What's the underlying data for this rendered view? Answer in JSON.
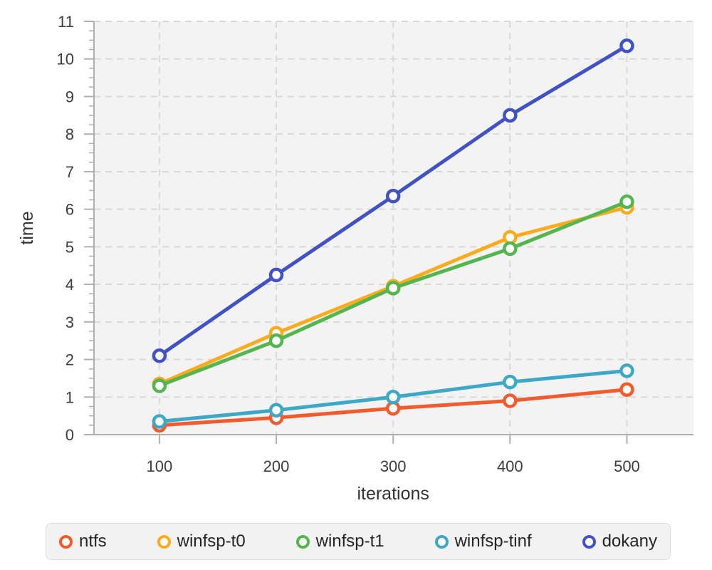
{
  "chart_data": {
    "type": "line",
    "title": "",
    "xlabel": "iterations",
    "ylabel": "time",
    "x": [
      100,
      200,
      300,
      400,
      500
    ],
    "x_ticks": [
      100,
      200,
      300,
      400,
      500
    ],
    "y_ticks": [
      0,
      1,
      2,
      3,
      4,
      5,
      6,
      7,
      8,
      9,
      10,
      11
    ],
    "ylim": [
      0,
      11
    ],
    "xlim": [
      44,
      557
    ],
    "grid": "dashed",
    "legend_position": "bottom",
    "marker": "open-circle",
    "series": [
      {
        "name": "ntfs",
        "color": "#f15b2e",
        "values": [
          0.25,
          0.45,
          0.7,
          0.9,
          1.2
        ]
      },
      {
        "name": "winfsp-t0",
        "color": "#fbab1e",
        "values": [
          1.35,
          2.7,
          3.95,
          5.25,
          6.05
        ]
      },
      {
        "name": "winfsp-t1",
        "color": "#55b54f",
        "values": [
          1.3,
          2.5,
          3.9,
          4.95,
          6.2
        ]
      },
      {
        "name": "winfsp-tinf",
        "color": "#3fa8c7",
        "values": [
          0.35,
          0.65,
          1.0,
          1.4,
          1.7
        ]
      },
      {
        "name": "dokany",
        "color": "#4252c5",
        "values": [
          2.1,
          4.25,
          6.35,
          8.5,
          10.35
        ]
      }
    ],
    "colors": {
      "plot_bg": "#f3f3f3",
      "grid": "#d9d9d9",
      "axis": "#b0b0b0",
      "tick_text": "#3d3d3d",
      "label_text": "#333333"
    }
  }
}
